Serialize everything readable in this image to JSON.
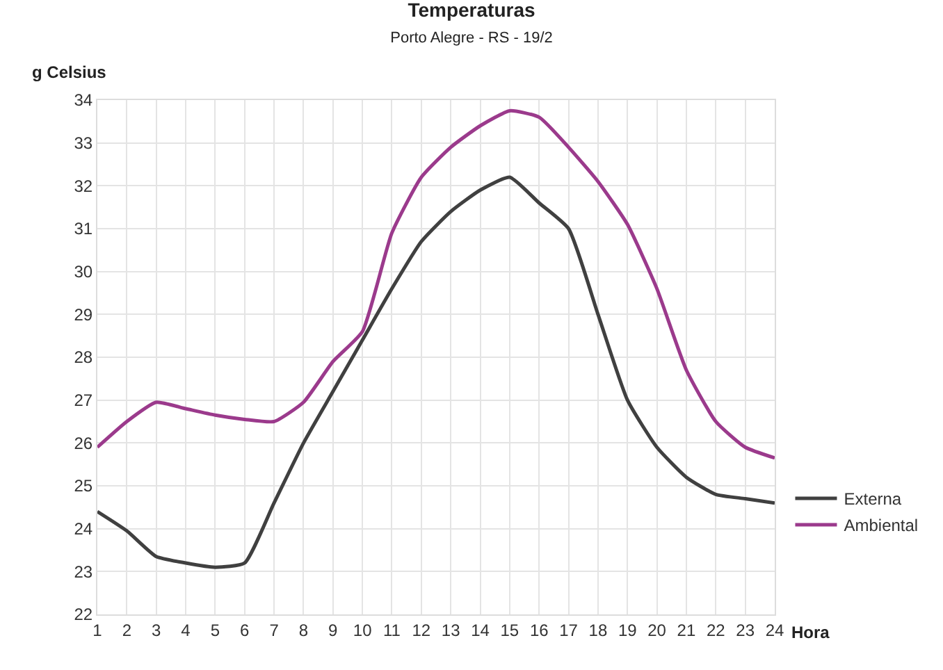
{
  "chart_data": {
    "type": "line",
    "title": "Temperaturas",
    "subtitle": "Porto Alegre - RS - 19/2",
    "ylabel": "g Celsius",
    "xlabel": "Hora",
    "x": [
      1,
      2,
      3,
      4,
      5,
      6,
      7,
      8,
      9,
      10,
      11,
      12,
      13,
      14,
      15,
      16,
      17,
      18,
      19,
      20,
      21,
      22,
      23,
      24
    ],
    "series": [
      {
        "name": "Externa",
        "color": "#404040",
        "values": [
          24.4,
          23.95,
          23.35,
          23.2,
          23.1,
          23.2,
          24.6,
          26.0,
          27.2,
          28.4,
          29.6,
          30.7,
          31.4,
          31.9,
          32.2,
          31.6,
          31.0,
          29.0,
          27.0,
          25.9,
          25.2,
          24.8,
          24.7,
          24.6
        ]
      },
      {
        "name": "Ambiental",
        "color": "#9b3a8c",
        "values": [
          25.9,
          26.5,
          26.95,
          26.8,
          26.65,
          26.55,
          26.5,
          26.95,
          27.9,
          28.6,
          30.9,
          32.2,
          32.9,
          33.4,
          33.75,
          33.6,
          32.9,
          32.1,
          31.1,
          29.6,
          27.7,
          26.5,
          25.9,
          25.65
        ]
      }
    ],
    "xlim": [
      1,
      24
    ],
    "xticks": [
      1,
      2,
      3,
      4,
      5,
      6,
      7,
      8,
      9,
      10,
      11,
      12,
      13,
      14,
      15,
      16,
      17,
      18,
      19,
      20,
      21,
      22,
      23,
      24
    ],
    "ylim": [
      22,
      34
    ],
    "yticks": [
      22,
      23,
      24,
      25,
      26,
      27,
      28,
      29,
      30,
      31,
      32,
      33,
      34
    ],
    "grid": true,
    "legend": "right",
    "marker": "none",
    "line_style": "solid"
  }
}
